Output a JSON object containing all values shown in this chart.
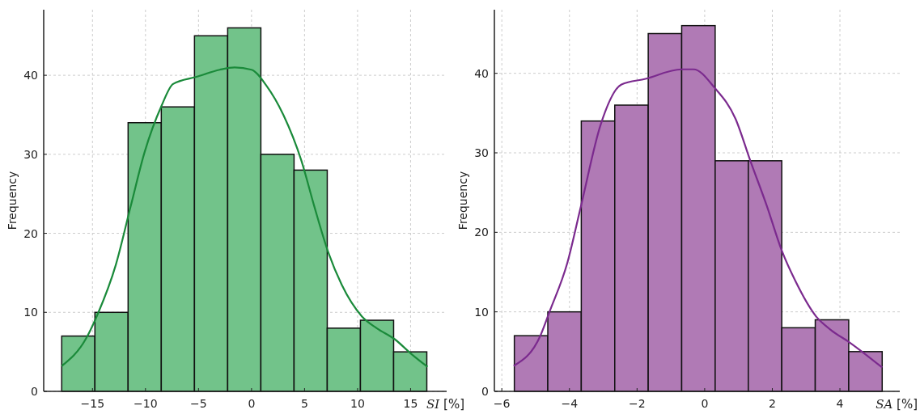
{
  "chart_data": [
    {
      "type": "histogram",
      "xlabel": "SI [%]",
      "ylabel": "Frequency",
      "bins": [
        -17.9,
        -14.77,
        -11.64,
        -8.51,
        -5.38,
        -2.25,
        0.88,
        4.01,
        7.14,
        10.27,
        13.4,
        16.53
      ],
      "xlim": [
        -19.6,
        18.4
      ],
      "ylim": [
        0,
        48.3
      ],
      "xticks": [
        {
          "value": -15,
          "label": "−15"
        },
        {
          "value": -10,
          "label": "−10"
        },
        {
          "value": -5,
          "label": "−5"
        },
        0,
        5,
        10,
        15
      ],
      "yticks": [
        0,
        10,
        20,
        30,
        40
      ],
      "grid": true,
      "series": [
        {
          "color": "#72c38a",
          "values": [
            7,
            10,
            34,
            36,
            45,
            46,
            30,
            28,
            8,
            9,
            5
          ]
        },
        {
          "type": "line",
          "color": "#1a8a3a",
          "x": [
            -17.9,
            -15.6,
            -14.5,
            -12.8,
            -11.4,
            -10.1,
            -8.5,
            -7.4,
            -5.2,
            -3.0,
            -1.6,
            0,
            1.4,
            3.0,
            4.7,
            5.9,
            7.26,
            8.5,
            10.4,
            11.8,
            13.5,
            15.1,
            16.6
          ],
          "values": [
            3.2,
            6.7,
            9.8,
            16,
            23.4,
            30.2,
            36.1,
            38.9,
            39.8,
            40.7,
            41.0,
            40.7,
            38.7,
            35,
            29.2,
            23.5,
            17.5,
            13.5,
            9.5,
            8.0,
            6.6,
            4.7,
            3.1
          ]
        }
      ]
    },
    {
      "type": "histogram",
      "xlabel": "SA [%]",
      "ylabel": "Frequency",
      "bins": [
        -5.63,
        -4.64,
        -3.65,
        -2.66,
        -1.67,
        -0.68,
        0.31,
        1.29,
        2.28,
        3.27,
        4.26,
        5.25
      ],
      "xlim": [
        -6.22,
        5.77
      ],
      "ylim": [
        0,
        48
      ],
      "xticks": [
        {
          "value": -6,
          "label": "−6"
        },
        {
          "value": -4,
          "label": "−4"
        },
        {
          "value": -2,
          "label": "−2"
        },
        0,
        2,
        4
      ],
      "yticks": [
        0,
        10,
        20,
        30,
        40
      ],
      "grid": true,
      "series": [
        {
          "color": "#b07ab5",
          "values": [
            7,
            10,
            34,
            36,
            45,
            46,
            29,
            29,
            8,
            9,
            5
          ]
        },
        {
          "type": "line",
          "color": "#7b2a8e",
          "x": [
            -5.65,
            -4.85,
            -4.59,
            -4.06,
            -3.66,
            -3.08,
            -2.46,
            -1.75,
            -0.69,
            -0.33,
            0.29,
            0.91,
            1.35,
            1.84,
            2.28,
            2.68,
            3.3,
            3.74,
            4.27,
            5.25
          ],
          "values": [
            3.2,
            7.1,
            10,
            16.2,
            23.3,
            33.5,
            38.6,
            39.3,
            40.5,
            40.5,
            38.2,
            34.3,
            29.0,
            23.3,
            17.7,
            13.9,
            9.4,
            7.7,
            6.2,
            3.0
          ]
        }
      ]
    }
  ]
}
